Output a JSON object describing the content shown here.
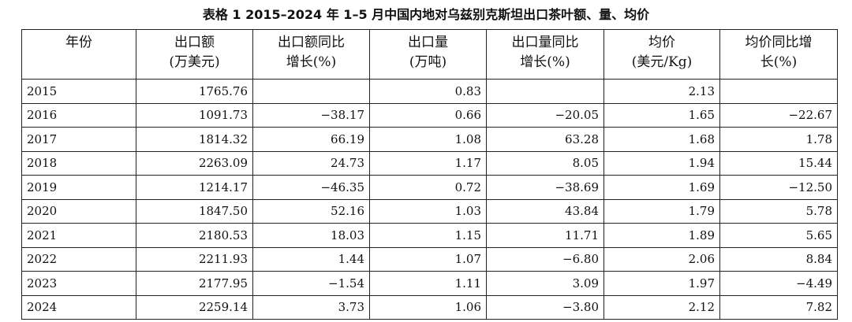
{
  "title": "表格 1 2015–2024 年 1–5 月中国内地对乌兹别克斯坦出口茶叶额、量、均价",
  "table": {
    "header": [
      [
        "年份"
      ],
      [
        "出口额",
        "(万美元)"
      ],
      [
        "出口额同比",
        "增长(%)"
      ],
      [
        "出口量",
        "(万吨)"
      ],
      [
        "出口量同比",
        "增长(%)"
      ],
      [
        "均价",
        "(美元/Kg)"
      ],
      [
        "均价同比增",
        "长(%)"
      ]
    ],
    "rows": [
      [
        "2015",
        "1765.76",
        null,
        "0.83",
        null,
        "2.13",
        null
      ],
      [
        "2016",
        "1091.73",
        "−38.17",
        "0.66",
        "−20.05",
        "1.65",
        "−22.67"
      ],
      [
        "2017",
        "1814.32",
        "66.19",
        "1.08",
        "63.28",
        "1.68",
        "1.78"
      ],
      [
        "2018",
        "2263.09",
        "24.73",
        "1.17",
        "8.05",
        "1.94",
        "15.44"
      ],
      [
        "2019",
        "1214.17",
        "−46.35",
        "0.72",
        "−38.69",
        "1.69",
        "−12.50"
      ],
      [
        "2020",
        "1847.50",
        "52.16",
        "1.03",
        "43.84",
        "1.79",
        "5.78"
      ],
      [
        "2021",
        "2180.53",
        "18.03",
        "1.15",
        "11.71",
        "1.89",
        "5.65"
      ],
      [
        "2022",
        "2211.93",
        "1.44",
        "1.07",
        "−6.80",
        "2.06",
        "8.84"
      ],
      [
        "2023",
        "2177.95",
        "−1.54",
        "1.11",
        "3.09",
        "1.97",
        "−4.49"
      ],
      [
        "2024",
        "2259.14",
        "3.73",
        "1.06",
        "−3.80",
        "2.12",
        "7.82"
      ]
    ]
  }
}
